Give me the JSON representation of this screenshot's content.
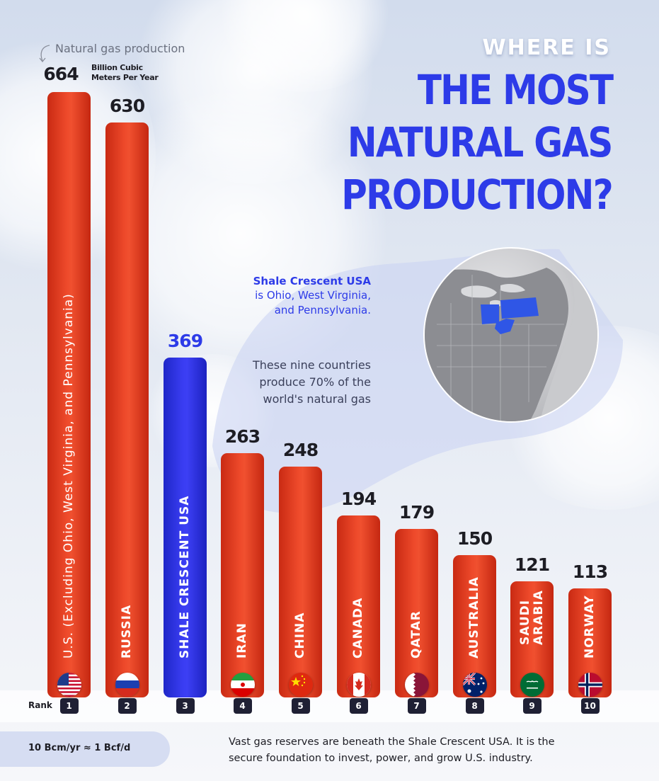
{
  "title": {
    "line1": "WHERE IS",
    "line2": "THE MOST",
    "line3": "NATURAL GAS",
    "line4": "PRODUCTION?"
  },
  "legend_note": {
    "label": "Natural gas production",
    "unit_line1": "Billion Cubic",
    "unit_line2": "Meters Per Year"
  },
  "callout": {
    "heading": "Shale Crescent USA",
    "line1": "is Ohio, West Virginia,",
    "line2": "and Pennsylvania.",
    "note_line1": "These nine countries",
    "note_line2": "produce 70% of the",
    "note_line3": "world's natural gas"
  },
  "rank_label": "Rank",
  "footer": {
    "conversion": "10 Bcm/yr ≈ 1 Bcf/d",
    "text_line1": "Vast gas reserves are beneath the Shale Crescent USA. It is the",
    "text_line2": "secure foundation to invest, power, and grow U.S. industry."
  },
  "colors": {
    "bar_red": "#e8401f",
    "bar_blue": "#3337e6",
    "title_blue": "#2d3be8",
    "shale_map_highlight": "#2f56e6"
  },
  "chart_data": {
    "type": "bar",
    "title": "WHERE IS THE MOST NATURAL GAS PRODUCTION?",
    "ylabel": "Natural gas production (Billion Cubic Meters Per Year)",
    "ylim": [
      0,
      664
    ],
    "grid": false,
    "legend": "none",
    "bars": [
      {
        "rank": "1",
        "label": "U.S. (Excluding Ohio, West Virginia, and Pennsylvania)",
        "value": 664,
        "value_text": "664",
        "color": "red",
        "flag": "us-flag-icon"
      },
      {
        "rank": "2",
        "label": "RUSSIA",
        "value": 630,
        "value_text": "630",
        "color": "red",
        "flag": "russia-flag-icon"
      },
      {
        "rank": "3",
        "label": "SHALE CRESCENT USA",
        "value": 369,
        "value_text": "369",
        "color": "blue",
        "flag": ""
      },
      {
        "rank": "4",
        "label": "IRAN",
        "value": 263,
        "value_text": "263",
        "color": "red",
        "flag": "iran-flag-icon"
      },
      {
        "rank": "5",
        "label": "CHINA",
        "value": 248,
        "value_text": "248",
        "color": "red",
        "flag": "china-flag-icon"
      },
      {
        "rank": "6",
        "label": "CANADA",
        "value": 194,
        "value_text": "194",
        "color": "red",
        "flag": "canada-flag-icon"
      },
      {
        "rank": "7",
        "label": "QATAR",
        "value": 179,
        "value_text": "179",
        "color": "red",
        "flag": "qatar-flag-icon"
      },
      {
        "rank": "8",
        "label": "AUSTRALIA",
        "value": 150,
        "value_text": "150",
        "color": "red",
        "flag": "australia-flag-icon"
      },
      {
        "rank": "9",
        "label": "SAUDI ARABIA",
        "value": 121,
        "value_text": "121",
        "color": "red",
        "flag": "saudi-arabia-flag-icon"
      },
      {
        "rank": "10",
        "label": "NORWAY",
        "value": 113,
        "value_text": "113",
        "color": "red",
        "flag": "norway-flag-icon"
      }
    ]
  }
}
